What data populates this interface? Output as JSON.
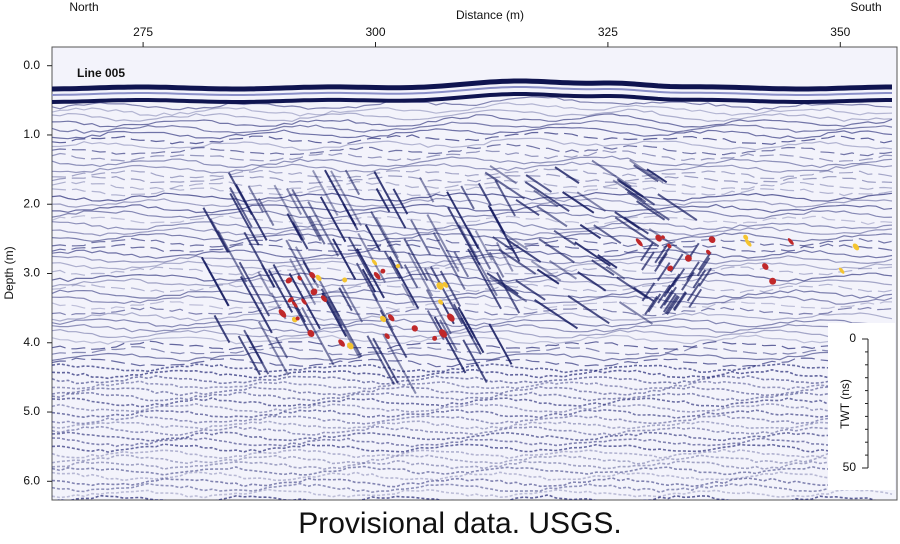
{
  "chart_data": {
    "type": "radargram",
    "title": "Distance (m)",
    "left_direction": "North",
    "right_direction": "South",
    "line_label": "Line 005",
    "y_label": "Depth (m)",
    "caption": "Provisional data. USGS.",
    "xlim": [
      265.2,
      356.1
    ],
    "xticks": [
      275,
      300,
      325,
      350
    ],
    "ylim": [
      -0.27,
      6.27
    ],
    "yticks": [
      {
        "value": 0,
        "label": "0.0"
      },
      {
        "value": 1,
        "label": "1.0"
      },
      {
        "value": 2,
        "label": "2.0"
      },
      {
        "value": 3,
        "label": "3.0"
      },
      {
        "value": 4,
        "label": "4.0"
      },
      {
        "value": 5,
        "label": "5.0"
      },
      {
        "value": 6,
        "label": "6.0"
      }
    ],
    "inset": {
      "y_label": "TWT (ns)",
      "ylim": [
        0,
        50
      ],
      "yticks": [
        0,
        50
      ]
    }
  }
}
